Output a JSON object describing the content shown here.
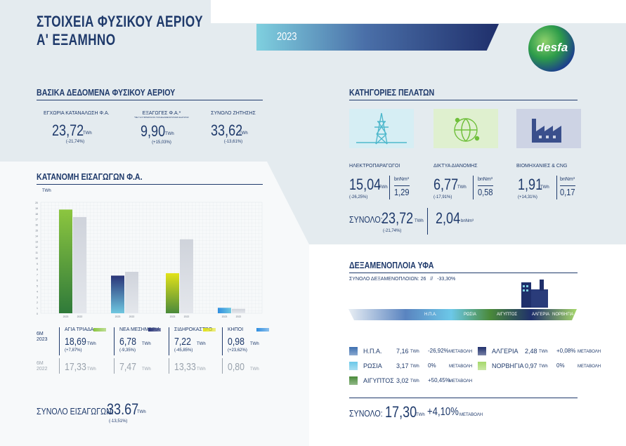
{
  "header": {
    "title_line1": "ΣΤΟΙΧΕΙΑ ΦΥΣΙΚΟΥ ΑΕΡΙΟΥ",
    "title_line2": "Α' ΕΞΑΜΗΝΟ",
    "year": "2023",
    "logo_text": "desfa"
  },
  "basic": {
    "title": "ΒΑΣΙΚΑ ΔΕΔΟΜΕΝΑ ΦΥΣΙΚΟΥ ΑΕΡΙΟΥ",
    "items": [
      {
        "label": "ΕΓΧΩΡΙΑ ΚΑΤΑΝΑΛΩΣΗ Φ.Α.",
        "sub": "",
        "value": "23,72",
        "unit": "TWh",
        "change": "(-21,74%)"
      },
      {
        "label": "ΕΞΑΓΩΓΕΣ Φ.Α.*",
        "sub": "*ΜΕ ΤΗ ΣΥΜΠΕΡΙΛΗΨΗ ΤΩΝ ΔΕΞΑΜΕΝΟΠΛΟΙΩΝ ΕΞΑΓΩΓΗΣ",
        "value": "9,90",
        "unit": "TWh",
        "change": "(+15,03%)"
      },
      {
        "label": "ΣΥΝΟΛΟ ΖΗΤΗΣΗΣ",
        "sub": "",
        "value": "33,62",
        "unit": "TWh",
        "change": "(-13,61%)"
      }
    ]
  },
  "customers": {
    "title": "ΚΑΤΗΓΟΡΙΕΣ ΠΕΛΑΤΩΝ",
    "items": [
      {
        "label": "ΗΛΕΚΤΡΟΠΑΡΑΓΩΓΟΙ",
        "value": "15,04",
        "unit": "TWh",
        "change": "(-26,25%)",
        "bnm_label": "bnNm³",
        "bnm_value": "1,29",
        "color": "#7fd0df"
      },
      {
        "label": "ΔΙΚΤΥΑ ΔΙΑΝΟΜΗΣ",
        "value": "6,77",
        "unit": "TWh",
        "change": "(-17,91%)",
        "bnm_label": "bnNm³",
        "bnm_value": "0,58",
        "color": "#8cc63f"
      },
      {
        "label": "ΒΙΟΜΗΧΑΝΙΕΣ & CNG",
        "value": "1,91",
        "unit": "TWh",
        "change": "(+14,31%)",
        "bnm_label": "bnNm³",
        "bnm_value": "0,17",
        "color": "#3a4f8c"
      }
    ],
    "total_label": "ΣΥΝΟΛΟ:",
    "total_value": "23,72",
    "total_unit": "TWh",
    "total_change": "(-21,74%)",
    "total_bnm": "2,04",
    "total_bnm_unit": "bnNm³"
  },
  "imports": {
    "title": "ΚΑΤΑΝΟΜΗ ΕΙΣΑΓΩΓΩΝ Φ.Α.",
    "axis_unit": "TWh",
    "row1_label": "6M 2023",
    "row2_label": "6M 2022",
    "total_label": "ΣΥΝΟΛΟ ΕΙΣΑΓΩΓΩΝ:",
    "total_value": "33.67",
    "total_unit": "TWh",
    "total_change": "(-13,51%)",
    "points": [
      {
        "name": "ΑΓΙΑ ΤΡΙΑΔΑ",
        "v2023": "18,69",
        "change": "(+7,87%)",
        "v2022": "17,33",
        "unit": "TWh",
        "color": "#8cc63f"
      },
      {
        "name": "ΝΕΑ ΜΕΣΗΜΒΡΙΑ",
        "v2023": "6,78",
        "change": "(-9,35%)",
        "v2022": "7,47",
        "unit": "TWh",
        "color": "#2a3578"
      },
      {
        "name": "ΣΙΔΗΡΟΚΑΣΤΡΟ",
        "v2023": "7,22",
        "change": "(-45,85%)",
        "v2022": "13,33",
        "unit": "TWh",
        "color": "#e2e21a"
      },
      {
        "name": "ΚΗΠΟΙ",
        "v2023": "0,98",
        "change": "(+23,62%)",
        "v2022": "0,80",
        "unit": "TWh",
        "color": "#2f8ee0"
      }
    ]
  },
  "chart_data": {
    "type": "bar",
    "title": "ΚΑΤΑΝΟΜΗ ΕΙΣΑΓΩΓΩΝ Φ.Α.",
    "ylabel": "TWh",
    "ylim": [
      0,
      20
    ],
    "categories": [
      "ΑΓΙΑ ΤΡΙΑΔΑ",
      "ΝΕΑ ΜΕΣΗΜΒΡΙΑ",
      "ΣΙΔΗΡΟΚΑΣΤΡΟ",
      "ΚΗΠΟΙ"
    ],
    "series": [
      {
        "name": "2023",
        "values": [
          18.69,
          6.78,
          7.22,
          0.98
        ]
      },
      {
        "name": "2022",
        "values": [
          17.33,
          7.47,
          13.33,
          0.8
        ]
      }
    ],
    "x_tick_labels": [
      "2023",
      "2022"
    ],
    "y_ticks": [
      "20",
      "19",
      "18",
      "17",
      "16",
      "15",
      "14",
      "13",
      "12",
      "11",
      "10",
      "9",
      "8",
      "7",
      "6",
      "5",
      "4",
      "3",
      "2",
      "1",
      "0"
    ]
  },
  "lng": {
    "title": "ΔΕΞΑΜΕΝΟΠΛΟΙΑ ΥΦΑ",
    "subtitle_label": "ΣΥΝΟΛΟ ΔΕΞΑΜΕΝΟΠΛΟΙΩΝ: 26",
    "subtitle_sep": "//",
    "subtitle_change": "-33,30%",
    "band_labels": [
      "Η.Π.Α.",
      "ΡΩΣΙΑ",
      "ΑΙΓΥΠΤΟΣ",
      "ΑΛΓΕΡΙΑ",
      "ΝΟΡΒΗΓΙΑ"
    ],
    "items": [
      {
        "name": "Η.Π.Α.",
        "value": "7,16",
        "unit": "TWh",
        "change": "-26,92%",
        "change_label": "ΜΕΤΑΒΟΛΗ",
        "color": "#3d6fb0"
      },
      {
        "name": "ΡΩΣΙΑ",
        "value": "3,17",
        "unit": "TWh",
        "change": "0%",
        "change_label": "ΜΕΤΑΒΟΛΗ",
        "color": "#6cc8e8"
      },
      {
        "name": "ΑΙΓΥΠΤΟΣ",
        "value": "3,02",
        "unit": "TWh",
        "change": "+50,45%",
        "change_label": "ΜΕΤΑΒΟΛΗ",
        "color": "#4a8a3a"
      },
      {
        "name": "ΑΛΓΕΡΙΑ",
        "value": "2,48",
        "unit": "TWh",
        "change": "+0,08%",
        "change_label": "ΜΕΤΑΒΟΛΗ",
        "color": "#1f2f6b"
      },
      {
        "name": "ΝΟΡΒΗΓΙΑ",
        "value": "0,97",
        "unit": "TWh",
        "change": "0%",
        "change_label": "ΜΕΤΑΒΟΛΗ",
        "color": "#a6d86a"
      }
    ],
    "total_label": "ΣΥΝΟΛΟ:",
    "total_value": "17,30",
    "total_unit": "TWh",
    "total_change": "+4,10%",
    "total_change_label": "ΜΕΤΑΒΟΛΗ"
  }
}
